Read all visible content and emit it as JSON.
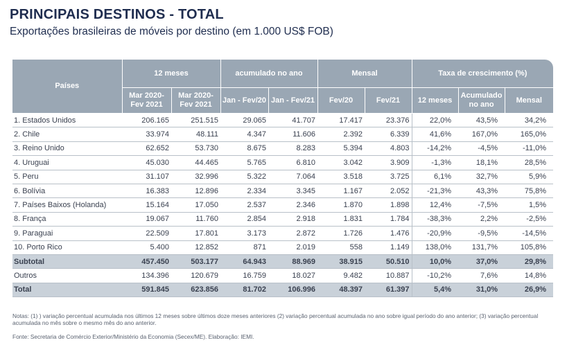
{
  "title": "PRINCIPAIS DESTINOS - TOTAL",
  "subtitle": "Exportações brasileiras de móveis por destino (em 1.000 US$ FOB)",
  "table": {
    "header_paises": "Países",
    "groups": [
      "12 meses",
      "acumulado no ano",
      "Mensal",
      "Taxa de crescimento (%)"
    ],
    "sub": {
      "c1a": "Mar 2020-",
      "c1b": "Fev 2021",
      "c2a": "Mar 2020-",
      "c2b": "Fev 2021",
      "c3": "Jan - Fev/20",
      "c4": "Jan - Fev/21",
      "c5": "Fev/20",
      "c6": "Fev/21",
      "c7": "12 meses",
      "c8a": "Acumulado",
      "c8b": "no ano",
      "c9": "Mensal"
    },
    "rows": [
      {
        "name": "1. Estados Unidos",
        "v": [
          "206.165",
          "251.515",
          "29.065",
          "41.707",
          "17.417",
          "23.376",
          "22,0%",
          "43,5%",
          "34,2%"
        ]
      },
      {
        "name": "2. Chile",
        "v": [
          "33.974",
          "48.111",
          "4.347",
          "11.606",
          "2.392",
          "6.339",
          "41,6%",
          "167,0%",
          "165,0%"
        ]
      },
      {
        "name": "3. Reino Unido",
        "v": [
          "62.652",
          "53.730",
          "8.675",
          "8.283",
          "5.394",
          "4.803",
          "-14,2%",
          "-4,5%",
          "-11,0%"
        ]
      },
      {
        "name": "4. Uruguai",
        "v": [
          "45.030",
          "44.465",
          "5.765",
          "6.810",
          "3.042",
          "3.909",
          "-1,3%",
          "18,1%",
          "28,5%"
        ]
      },
      {
        "name": "5. Peru",
        "v": [
          "31.107",
          "32.996",
          "5.322",
          "7.064",
          "3.518",
          "3.725",
          "6,1%",
          "32,7%",
          "5,9%"
        ]
      },
      {
        "name": "6. Bolívia",
        "v": [
          "16.383",
          "12.896",
          "2.334",
          "3.345",
          "1.167",
          "2.052",
          "-21,3%",
          "43,3%",
          "75,8%"
        ]
      },
      {
        "name": "7. Países Baixos (Holanda)",
        "v": [
          "15.164",
          "17.050",
          "2.537",
          "2.346",
          "1.870",
          "1.898",
          "12,4%",
          "-7,5%",
          "1,5%"
        ]
      },
      {
        "name": "8. França",
        "v": [
          "19.067",
          "11.760",
          "2.854",
          "2.918",
          "1.831",
          "1.784",
          "-38,3%",
          "2,2%",
          "-2,5%"
        ]
      },
      {
        "name": "9. Paraguai",
        "v": [
          "22.509",
          "17.801",
          "3.173",
          "2.872",
          "1.726",
          "1.476",
          "-20,9%",
          "-9,5%",
          "-14,5%"
        ]
      },
      {
        "name": "10. Porto Rico",
        "v": [
          "5.400",
          "12.852",
          "871",
          "2.019",
          "558",
          "1.149",
          "138,0%",
          "131,7%",
          "105,8%"
        ]
      }
    ],
    "subtotal": {
      "name": "Subtotal",
      "v": [
        "457.450",
        "503.177",
        "64.943",
        "88.969",
        "38.915",
        "50.510",
        "10,0%",
        "37,0%",
        "29,8%"
      ]
    },
    "outros": {
      "name": "Outros",
      "v": [
        "134.396",
        "120.679",
        "16.759",
        "18.027",
        "9.482",
        "10.887",
        "-10,2%",
        "7,6%",
        "14,8%"
      ]
    },
    "total": {
      "name": "Total",
      "v": [
        "591.845",
        "623.856",
        "81.702",
        "106.996",
        "48.397",
        "61.397",
        "5,4%",
        "31,0%",
        "26,9%"
      ]
    }
  },
  "notes": "Notas: (1) ) variação percentual acumulada nos últimos 12 meses sobre últimos doze meses anteriores (2) variação percentual acumulada no ano sobre igual período do ano anterior; (3) variação percentual acumulada no mês sobre o mesmo mês do ano anterior.",
  "source": "Fonte: Secretaria de Comércio Exterior/Ministério da Economia (Secex/ME). Elaboração: IEMI."
}
